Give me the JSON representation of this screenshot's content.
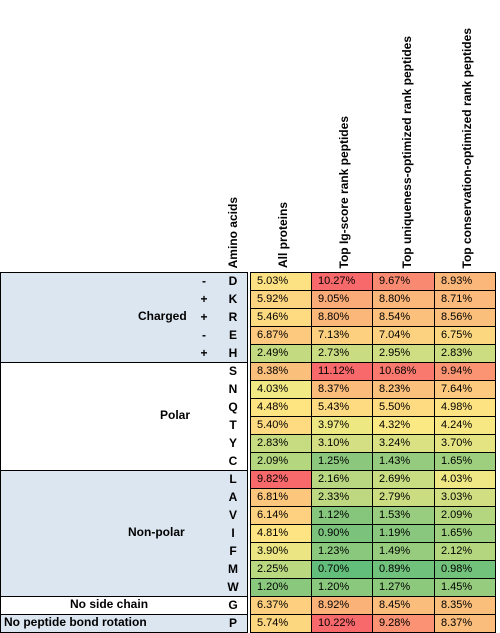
{
  "headers": {
    "amino_acids": "Amino acids",
    "columns": [
      "All proteins",
      "Top Ig-score rank peptides",
      "Top uniqueness-optimized rank peptides",
      "Top conservation-optimized rank peptides"
    ]
  },
  "groups": [
    {
      "name": "Charged",
      "color": "#dce6f1"
    },
    {
      "name": "Polar",
      "color": "#ffffff"
    },
    {
      "name": "Non-polar",
      "color": "#dce6f1"
    },
    {
      "name": "No side chain",
      "color": "#ffffff"
    },
    {
      "name": "No peptide bond rotation",
      "color": "#dce6f1"
    }
  ],
  "rows": [
    {
      "group": 0,
      "sign": "-",
      "aa": "D",
      "values": [
        "5.03%",
        "10.27%",
        "9.67%",
        "8.93%"
      ],
      "colors": [
        "#fde283",
        "#f8696b",
        "#f98a71",
        "#fbb67a"
      ]
    },
    {
      "group": 0,
      "sign": "+",
      "aa": "K",
      "values": [
        "5.92%",
        "9.05%",
        "8.80%",
        "8.71%"
      ],
      "colors": [
        "#fdd480",
        "#fbab77",
        "#fbb67a",
        "#fbba7b"
      ]
    },
    {
      "group": 0,
      "sign": "+",
      "aa": "R",
      "values": [
        "5.46%",
        "8.80%",
        "8.54%",
        "8.56%"
      ],
      "colors": [
        "#fedb81",
        "#fbb67a",
        "#fbc07c",
        "#fbbf7c"
      ]
    },
    {
      "group": 0,
      "sign": "-",
      "aa": "E",
      "values": [
        "6.87%",
        "7.13%",
        "7.04%",
        "6.75%"
      ],
      "colors": [
        "#fdc97e",
        "#fcd07f",
        "#fcd180",
        "#fdd780"
      ]
    },
    {
      "group": 0,
      "sign": "+",
      "aa": "H",
      "values": [
        "2.49%",
        "2.73%",
        "2.95%",
        "2.83%"
      ],
      "colors": [
        "#c3da80",
        "#c9dc81",
        "#cfde82",
        "#ccdd81"
      ]
    },
    {
      "group": 1,
      "sign": "",
      "aa": "S",
      "values": [
        "8.38%",
        "11.12%",
        "10.68%",
        "9.94%"
      ],
      "colors": [
        "#fbbf7c",
        "#f8696b",
        "#f9796e",
        "#fa9473"
      ]
    },
    {
      "group": 1,
      "sign": "",
      "aa": "N",
      "values": [
        "4.03%",
        "8.37%",
        "8.23%",
        "7.64%"
      ],
      "colors": [
        "#f1e984",
        "#fbbc7b",
        "#fbc07c",
        "#fcc97e"
      ]
    },
    {
      "group": 1,
      "sign": "",
      "aa": "Q",
      "values": [
        "4.48%",
        "5.43%",
        "5.50%",
        "4.98%"
      ],
      "colors": [
        "#fee582",
        "#fedb81",
        "#fedb81",
        "#fee382"
      ]
    },
    {
      "group": 1,
      "sign": "",
      "aa": "T",
      "values": [
        "5.40%",
        "3.97%",
        "4.32%",
        "4.24%"
      ],
      "colors": [
        "#fedb81",
        "#eee883",
        "#fbe983",
        "#f8e883"
      ]
    },
    {
      "group": 1,
      "sign": "",
      "aa": "Y",
      "values": [
        "2.83%",
        "3.10%",
        "3.24%",
        "3.70%"
      ],
      "colors": [
        "#c7dc81",
        "#d3df82",
        "#d9e182",
        "#e5e483"
      ]
    },
    {
      "group": 1,
      "sign": "",
      "aa": "C",
      "values": [
        "2.09%",
        "1.25%",
        "1.43%",
        "1.65%"
      ],
      "colors": [
        "#b3d67f",
        "#8bc87d",
        "#94cb7e",
        "#9ecf7e"
      ]
    },
    {
      "group": 2,
      "sign": "",
      "aa": "L",
      "values": [
        "9.82%",
        "2.16%",
        "2.69%",
        "4.03%"
      ],
      "colors": [
        "#f8696b",
        "#b8d780",
        "#c8dc81",
        "#f0e884"
      ]
    },
    {
      "group": 2,
      "sign": "",
      "aa": "A",
      "values": [
        "6.81%",
        "2.33%",
        "2.79%",
        "3.03%"
      ],
      "colors": [
        "#fcc77d",
        "#bdd880",
        "#cbdd81",
        "#d1df82"
      ]
    },
    {
      "group": 2,
      "sign": "",
      "aa": "V",
      "values": [
        "6.14%",
        "1.12%",
        "1.53%",
        "2.09%"
      ],
      "colors": [
        "#fdd17f",
        "#85c67c",
        "#98cc7e",
        "#b3d67f"
      ]
    },
    {
      "group": 2,
      "sign": "",
      "aa": "I",
      "values": [
        "4.81%",
        "0.90%",
        "1.19%",
        "1.65%"
      ],
      "colors": [
        "#fee482",
        "#7bc27c",
        "#88c77d",
        "#9ecf7e"
      ]
    },
    {
      "group": 2,
      "sign": "",
      "aa": "F",
      "values": [
        "3.90%",
        "1.23%",
        "1.49%",
        "2.12%"
      ],
      "colors": [
        "#ebe683",
        "#8ac87d",
        "#97cc7e",
        "#b4d67f"
      ]
    },
    {
      "group": 2,
      "sign": "",
      "aa": "M",
      "values": [
        "2.25%",
        "0.70%",
        "0.89%",
        "0.98%"
      ],
      "colors": [
        "#bad880",
        "#63be7b",
        "#6fc17c",
        "#73c27c"
      ]
    },
    {
      "group": 2,
      "sign": "",
      "aa": "W",
      "values": [
        "1.20%",
        "1.20%",
        "1.27%",
        "1.45%"
      ],
      "colors": [
        "#89c87d",
        "#89c87d",
        "#8cc97d",
        "#95cc7e"
      ]
    },
    {
      "group": 3,
      "sign": "",
      "aa": "G",
      "values": [
        "6.37%",
        "8.92%",
        "8.45%",
        "8.35%"
      ],
      "colors": [
        "#fdcf7f",
        "#fbb279",
        "#fbbd7c",
        "#fbbf7c"
      ]
    },
    {
      "group": 4,
      "sign": "",
      "aa": "P",
      "values": [
        "5.74%",
        "10.22%",
        "9.28%",
        "8.37%"
      ],
      "colors": [
        "#fdd680",
        "#f8696b",
        "#fa9273",
        "#fbbd7c"
      ]
    }
  ]
}
